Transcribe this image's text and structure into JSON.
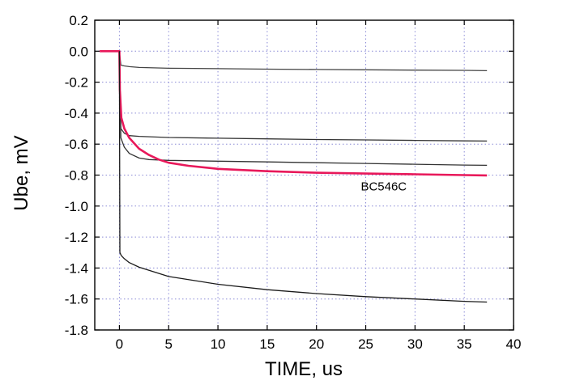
{
  "chart_data": {
    "type": "line",
    "xlabel": "TIME, us",
    "ylabel": "Ube, mV",
    "xlim": [
      -2.5,
      40
    ],
    "ylim": [
      -1.8,
      0.2
    ],
    "x_ticks": [
      0,
      5,
      10,
      15,
      20,
      25,
      30,
      35,
      40
    ],
    "y_ticks": [
      0.2,
      0.0,
      -0.2,
      -0.4,
      -0.6,
      -0.8,
      -1.0,
      -1.2,
      -1.4,
      -1.6,
      -1.8
    ],
    "grid": true,
    "annotations": [
      {
        "text": "BC546C",
        "x": 24.5,
        "y": -0.9
      }
    ],
    "series": [
      {
        "color": "#444444",
        "x": [
          0,
          0.15,
          0.5,
          1,
          2,
          5,
          10,
          15,
          20,
          25,
          30,
          35,
          37.3
        ],
        "y": [
          0,
          -0.09,
          -0.095,
          -0.1,
          -0.105,
          -0.11,
          -0.113,
          -0.116,
          -0.118,
          -0.12,
          -0.122,
          -0.124,
          -0.126
        ]
      },
      {
        "color": "#333333",
        "x": [
          0,
          0.15,
          0.5,
          1,
          2,
          5,
          10,
          15,
          20,
          25,
          30,
          35,
          37.3
        ],
        "y": [
          0,
          -0.5,
          -0.53,
          -0.545,
          -0.55,
          -0.557,
          -0.562,
          -0.566,
          -0.57,
          -0.573,
          -0.576,
          -0.579,
          -0.58
        ]
      },
      {
        "color": "#333333",
        "x": [
          0,
          0.15,
          0.5,
          1,
          2,
          3,
          5,
          10,
          15,
          20,
          25,
          30,
          35,
          37.3
        ],
        "y": [
          0,
          -0.56,
          -0.62,
          -0.66,
          -0.69,
          -0.7,
          -0.705,
          -0.71,
          -0.715,
          -0.72,
          -0.725,
          -0.73,
          -0.735,
          -0.737
        ]
      },
      {
        "color": "#e8185a",
        "x": [
          -2,
          0,
          0.05,
          0.2,
          0.5,
          1,
          2,
          3,
          4,
          5,
          7,
          10,
          15,
          20,
          25,
          30,
          35,
          37.3
        ],
        "y": [
          0,
          0,
          -0.25,
          -0.43,
          -0.5,
          -0.56,
          -0.63,
          -0.67,
          -0.7,
          -0.72,
          -0.74,
          -0.76,
          -0.775,
          -0.785,
          -0.79,
          -0.795,
          -0.8,
          -0.802
        ]
      },
      {
        "color": "#1a1a1a",
        "x": [
          0,
          0.05,
          0.2,
          0.5,
          1,
          2,
          5,
          10,
          15,
          20,
          25,
          30,
          35,
          37.3
        ],
        "y": [
          0,
          -1.3,
          -1.32,
          -1.34,
          -1.365,
          -1.395,
          -1.455,
          -1.505,
          -1.54,
          -1.565,
          -1.585,
          -1.6,
          -1.615,
          -1.62
        ]
      }
    ]
  }
}
